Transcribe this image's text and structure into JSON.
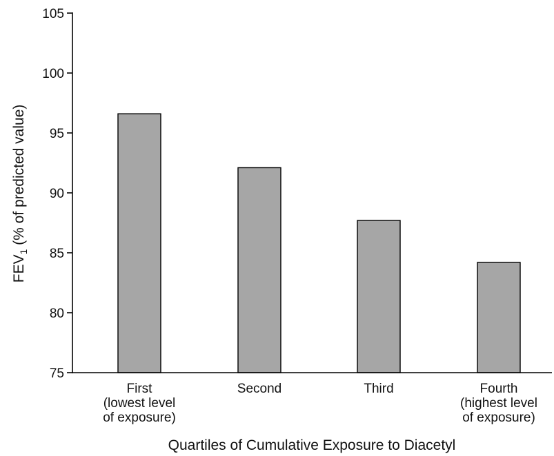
{
  "chart_data": {
    "type": "bar",
    "title": "",
    "categories": [
      [
        "First",
        "(lowest level",
        "of exposure)"
      ],
      [
        "Second"
      ],
      [
        "Third"
      ],
      [
        "Fourth",
        "(highest level",
        "of exposure)"
      ]
    ],
    "values": [
      96.6,
      92.1,
      87.7,
      84.2
    ],
    "xlabel": "Quartiles of Cumulative Exposure to Diacetyl",
    "ylabel": {
      "prefix": "FEV",
      "subscript": "1",
      "suffix": " (% of predicted value)"
    },
    "ylim": [
      75,
      105
    ],
    "yticks": [
      75,
      80,
      85,
      90,
      95,
      100,
      105
    ],
    "grid": false,
    "legend": "none",
    "colors": {
      "bar_fill": "#a6a6a6",
      "bar_stroke": "#000000",
      "axis": "#000000",
      "text": "#111111"
    }
  }
}
